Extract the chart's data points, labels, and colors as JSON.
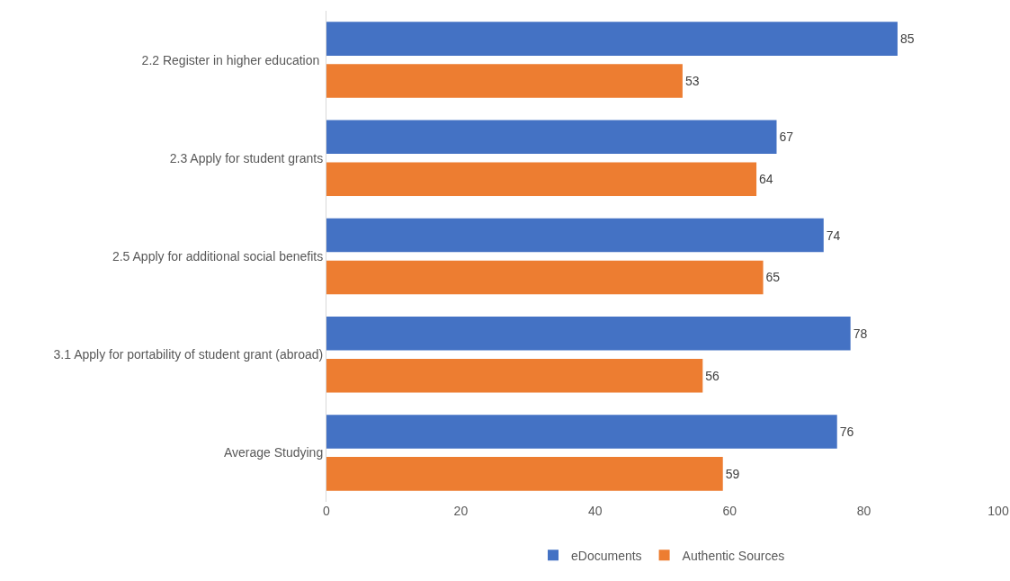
{
  "chart_data": {
    "type": "bar",
    "orientation": "horizontal",
    "categories": [
      "2.2 Register in higher education ",
      "2.3 Apply for student grants",
      "2.5 Apply for additional social benefits",
      "3.1 Apply for portability of student grant (abroad)",
      "Average Studying"
    ],
    "series": [
      {
        "name": "eDocuments",
        "color": "#4472c4",
        "values": [
          85,
          67,
          74,
          78,
          76
        ]
      },
      {
        "name": "Authentic Sources",
        "color": "#ed7d31",
        "values": [
          53,
          64,
          65,
          56,
          59
        ]
      }
    ],
    "xlim": [
      0,
      100
    ],
    "xticks": [
      0,
      20,
      40,
      60,
      80,
      100
    ],
    "grid": false,
    "legend": "bottom",
    "data_labels": true
  }
}
